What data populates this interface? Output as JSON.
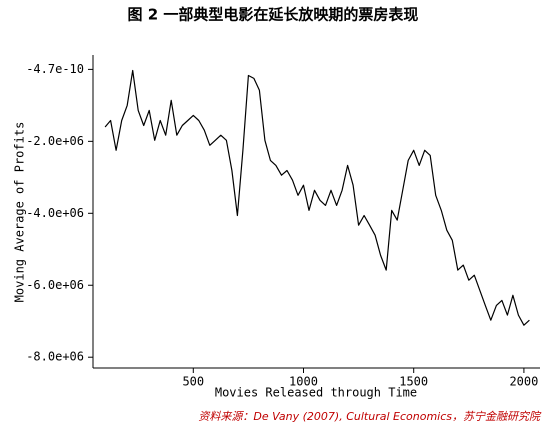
{
  "chart_data": {
    "type": "line",
    "title": "图 2 一部典型电影在延长放映期的票房表现",
    "x_label": "Movies Released through Time",
    "y_label": "Moving Average of Profits",
    "source": "资料来源：De Vany (2007), Cultural Economics，苏宁金融研究院",
    "color": "#000000",
    "xlim": [
      45,
      2073
    ],
    "ylim": [
      -8300000,
      400000
    ],
    "xticks": [
      500,
      1000,
      1500,
      2000
    ],
    "yticks": [
      {
        "value": -4.7e-10,
        "label": "-4.7e-10"
      },
      {
        "value": -2000000,
        "label": "-2.0e+06"
      },
      {
        "value": -4000000,
        "label": "-4.0e+06"
      },
      {
        "value": -6000000,
        "label": "-6.0e+06"
      },
      {
        "value": -8000000,
        "label": "-8.0e+06"
      }
    ],
    "x": [
      100,
      125,
      150,
      175,
      200,
      225,
      250,
      275,
      300,
      325,
      350,
      375,
      400,
      425,
      450,
      475,
      500,
      525,
      550,
      575,
      600,
      625,
      650,
      675,
      700,
      725,
      750,
      775,
      800,
      825,
      850,
      875,
      900,
      925,
      950,
      975,
      1000,
      1025,
      1050,
      1075,
      1100,
      1125,
      1150,
      1175,
      1200,
      1225,
      1250,
      1275,
      1300,
      1325,
      1350,
      1375,
      1400,
      1425,
      1450,
      1475,
      1500,
      1525,
      1550,
      1575,
      1600,
      1625,
      1650,
      1675,
      1700,
      1725,
      1750,
      1775,
      1800,
      1825,
      1850,
      1875,
      1900,
      1925,
      1950,
      1975,
      2000,
      2025
    ],
    "values": [
      -1600000,
      -1420000,
      -2250000,
      -1420000,
      -1000000,
      -30000,
      -1140000,
      -1560000,
      -1140000,
      -1970000,
      -1420000,
      -1830000,
      -860000,
      -1830000,
      -1560000,
      -1420000,
      -1280000,
      -1420000,
      -1690000,
      -2110000,
      -1970000,
      -1830000,
      -1970000,
      -2810000,
      -4060000,
      -2250000,
      -170000,
      -250000,
      -580000,
      -1970000,
      -2530000,
      -2670000,
      -2940000,
      -2810000,
      -3080000,
      -3500000,
      -3220000,
      -3920000,
      -3360000,
      -3640000,
      -3780000,
      -3360000,
      -3780000,
      -3360000,
      -2670000,
      -3220000,
      -4330000,
      -4060000,
      -4330000,
      -4610000,
      -5170000,
      -5580000,
      -3920000,
      -4190000,
      -3360000,
      -2530000,
      -2250000,
      -2670000,
      -2250000,
      -2390000,
      -3500000,
      -3920000,
      -4470000,
      -4750000,
      -5580000,
      -5440000,
      -5860000,
      -5720000,
      -6140000,
      -6560000,
      -6970000,
      -6560000,
      -6420000,
      -6830000,
      -6280000,
      -6830000,
      -7110000,
      -6970000
    ]
  }
}
